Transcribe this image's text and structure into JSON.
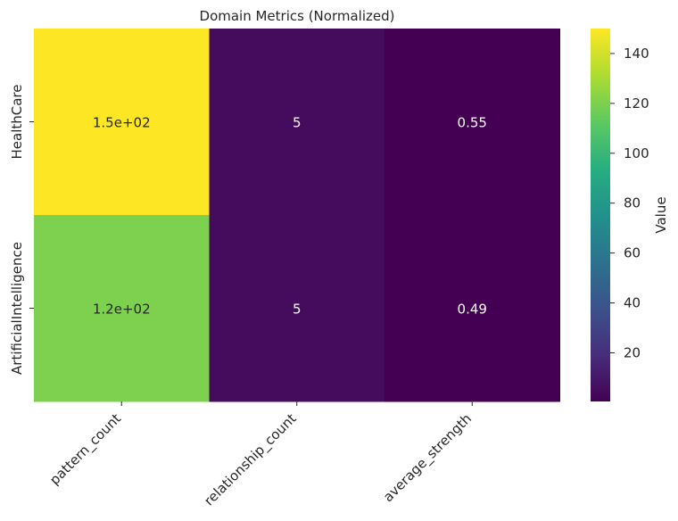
{
  "chart_data": {
    "type": "heatmap",
    "title": "Domain Metrics (Normalized)",
    "x_categories": [
      "pattern_count",
      "relationship_count",
      "average_strength"
    ],
    "y_categories": [
      "HealthCare",
      "ArtificialIntelligence"
    ],
    "values": [
      [
        150,
        5,
        0.55
      ],
      [
        120,
        5,
        0.49
      ]
    ],
    "cell_labels": [
      [
        "1.5e+02",
        "5",
        "0.55"
      ],
      [
        "1.2e+02",
        "5",
        "0.49"
      ]
    ],
    "colormap": "viridis",
    "colorbar": {
      "label": "Value",
      "range": [
        0.49,
        150
      ],
      "ticks": [
        20,
        40,
        60,
        80,
        100,
        120,
        140
      ],
      "tick_labels": [
        "20",
        "40",
        "60",
        "80",
        "100",
        "120",
        "140"
      ]
    },
    "xlabel": "",
    "ylabel": "",
    "grid": false,
    "legend": "colorbar-right"
  }
}
